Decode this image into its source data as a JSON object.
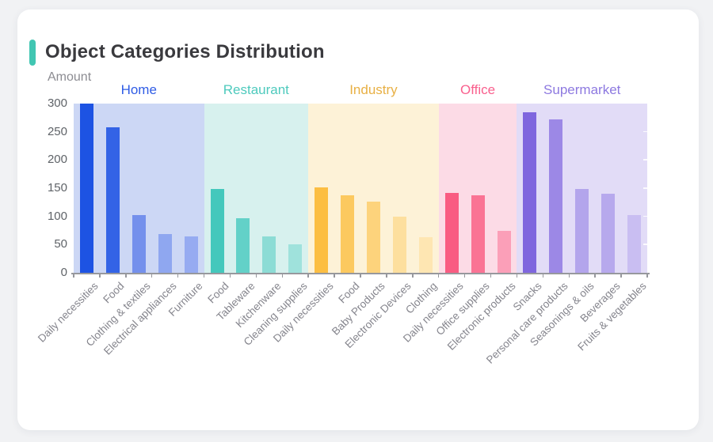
{
  "header": {
    "title": "Object Categories Distribution",
    "accent_color": "#41c6b2"
  },
  "chart_data": {
    "type": "bar",
    "title": "Object Categories Distribution",
    "xlabel": "",
    "ylabel": "Amount",
    "ylim": [
      0,
      300
    ],
    "y_ticks": [
      0,
      50,
      100,
      150,
      200,
      250,
      300
    ],
    "grid": false,
    "legend_position": "none",
    "axis_color": "#97989d",
    "tick_label_color": "#5f6368",
    "x_label_color": "#85858d",
    "groups": [
      {
        "name": "Home",
        "label_color": "#2f5ce5",
        "band_color": "#ccd7f5",
        "categories": [
          "Daily necessities",
          "Food",
          "Clothing & textiles",
          "Electrical appliances",
          "Furniture"
        ],
        "values": [
          300,
          258,
          102,
          69,
          64
        ],
        "bar_colors": [
          "#1d53e3",
          "#3363e6",
          "#7490ec",
          "#8fa7f0",
          "#96abf1"
        ]
      },
      {
        "name": "Restaurant",
        "label_color": "#4ecabd",
        "band_color": "#d7f1ee",
        "categories": [
          "Food",
          "Tableware",
          "Kitchenware",
          "Cleaning supplies"
        ],
        "values": [
          149,
          97,
          65,
          51
        ],
        "bar_colors": [
          "#44c8bc",
          "#63d1c8",
          "#8cdcd5",
          "#9fe2dc"
        ]
      },
      {
        "name": "Industry",
        "label_color": "#e8b044",
        "band_color": "#fdf2d7",
        "categories": [
          "Daily necessities",
          "Food",
          "Baby Products",
          "Electronic Devices",
          "Clothing"
        ],
        "values": [
          151,
          138,
          126,
          100,
          63
        ],
        "bar_colors": [
          "#fcbe42",
          "#fcc95f",
          "#fdd37c",
          "#fddf9e",
          "#fee6b2"
        ]
      },
      {
        "name": "Office",
        "label_color": "#f9608e",
        "band_color": "#fcdbe6",
        "categories": [
          "Daily necessities",
          "Office supplies",
          "Electronic products"
        ],
        "values": [
          142,
          138,
          75
        ],
        "bar_colors": [
          "#f95c82",
          "#fa7394",
          "#fb9fb8"
        ]
      },
      {
        "name": "Supermarket",
        "label_color": "#8d79e0",
        "band_color": "#e2dcf7",
        "categories": [
          "Snacks",
          "Personal care products",
          "Seasonings & oils",
          "Beverages",
          "Fruits & vegetables"
        ],
        "values": [
          285,
          272,
          148,
          140,
          102
        ],
        "bar_colors": [
          "#7f66de",
          "#9c88e6",
          "#b3a5ec",
          "#b7a9ed",
          "#c9bef2"
        ]
      }
    ]
  }
}
